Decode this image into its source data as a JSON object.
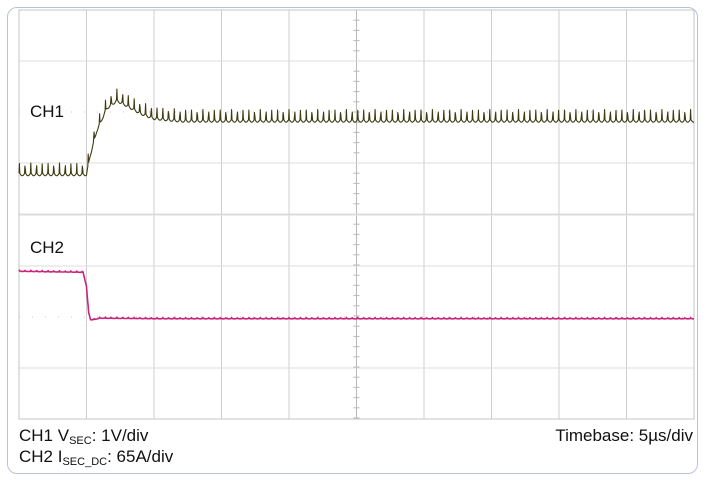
{
  "chart_data": {
    "type": "line",
    "title": "",
    "xlabel": "",
    "ylabel": "",
    "grid": true,
    "x_divisions": 10,
    "y_divisions_per_channel": 4,
    "series": [
      {
        "name": "CH1",
        "color": "#3d3b10",
        "x_div": [
          0,
          1.0,
          1.05,
          1.15,
          1.3,
          1.45,
          1.6,
          1.8,
          2.0,
          2.4,
          3.0,
          4.0,
          5.0,
          6.0,
          7.0,
          8.0,
          9.0,
          10.0
        ],
        "y_div": [
          -1.2,
          -1.2,
          -0.85,
          -0.35,
          0.1,
          0.25,
          0.15,
          0.0,
          -0.1,
          -0.15,
          -0.15,
          -0.15,
          -0.15,
          -0.15,
          -0.15,
          -0.15,
          -0.15,
          -0.15
        ],
        "ripple_div": 0.2
      },
      {
        "name": "CH2",
        "color": "#c8247a",
        "x_div": [
          0,
          0.95,
          1.0,
          1.03,
          1.06,
          1.1,
          1.2,
          2.0,
          4.0,
          6.0,
          8.0,
          10.0
        ],
        "y_div": [
          0.9,
          0.88,
          0.6,
          0.1,
          -0.05,
          -0.05,
          -0.02,
          -0.03,
          -0.03,
          -0.03,
          -0.03,
          -0.03
        ],
        "ripple_div": 0.02
      }
    ]
  },
  "labels": {
    "ch1": "CH1",
    "ch2": "CH2"
  },
  "footer": {
    "ch1_prefix": "CH1 V",
    "ch1_sub": "SEC",
    "ch1_scale": ": 1V/div",
    "ch2_prefix": "CH2 I",
    "ch2_sub": "SEC_DC",
    "ch2_scale": ": 65A/div",
    "timebase": "Timebase: 5µs/div"
  }
}
